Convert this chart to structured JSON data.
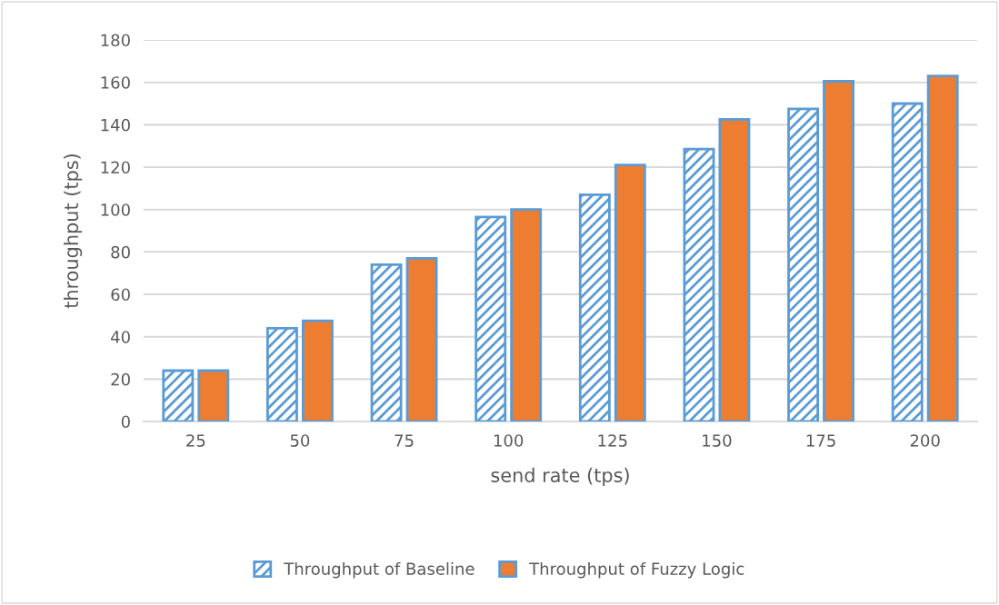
{
  "chart_data": {
    "type": "bar",
    "xlabel": "send rate (tps)",
    "ylabel": "throughput (tps)",
    "categories": [
      "25",
      "50",
      "75",
      "100",
      "125",
      "150",
      "175",
      "200"
    ],
    "series": [
      {
        "name": "Throughput of Baseline",
        "color": "#5b9bd5",
        "values": [
          24,
          44,
          74,
          96.5,
          107,
          128.5,
          147.5,
          150
        ]
      },
      {
        "name": "Throughput of Fuzzy Logic",
        "color": "#ed7d31",
        "values": [
          24,
          47.5,
          77,
          100,
          121,
          142.5,
          160.5,
          163
        ]
      }
    ],
    "ylim": [
      0,
      180
    ],
    "yticks": [
      0,
      20,
      40,
      60,
      80,
      100,
      120,
      140,
      160,
      180
    ],
    "grid": "y",
    "legend": "bottom"
  }
}
